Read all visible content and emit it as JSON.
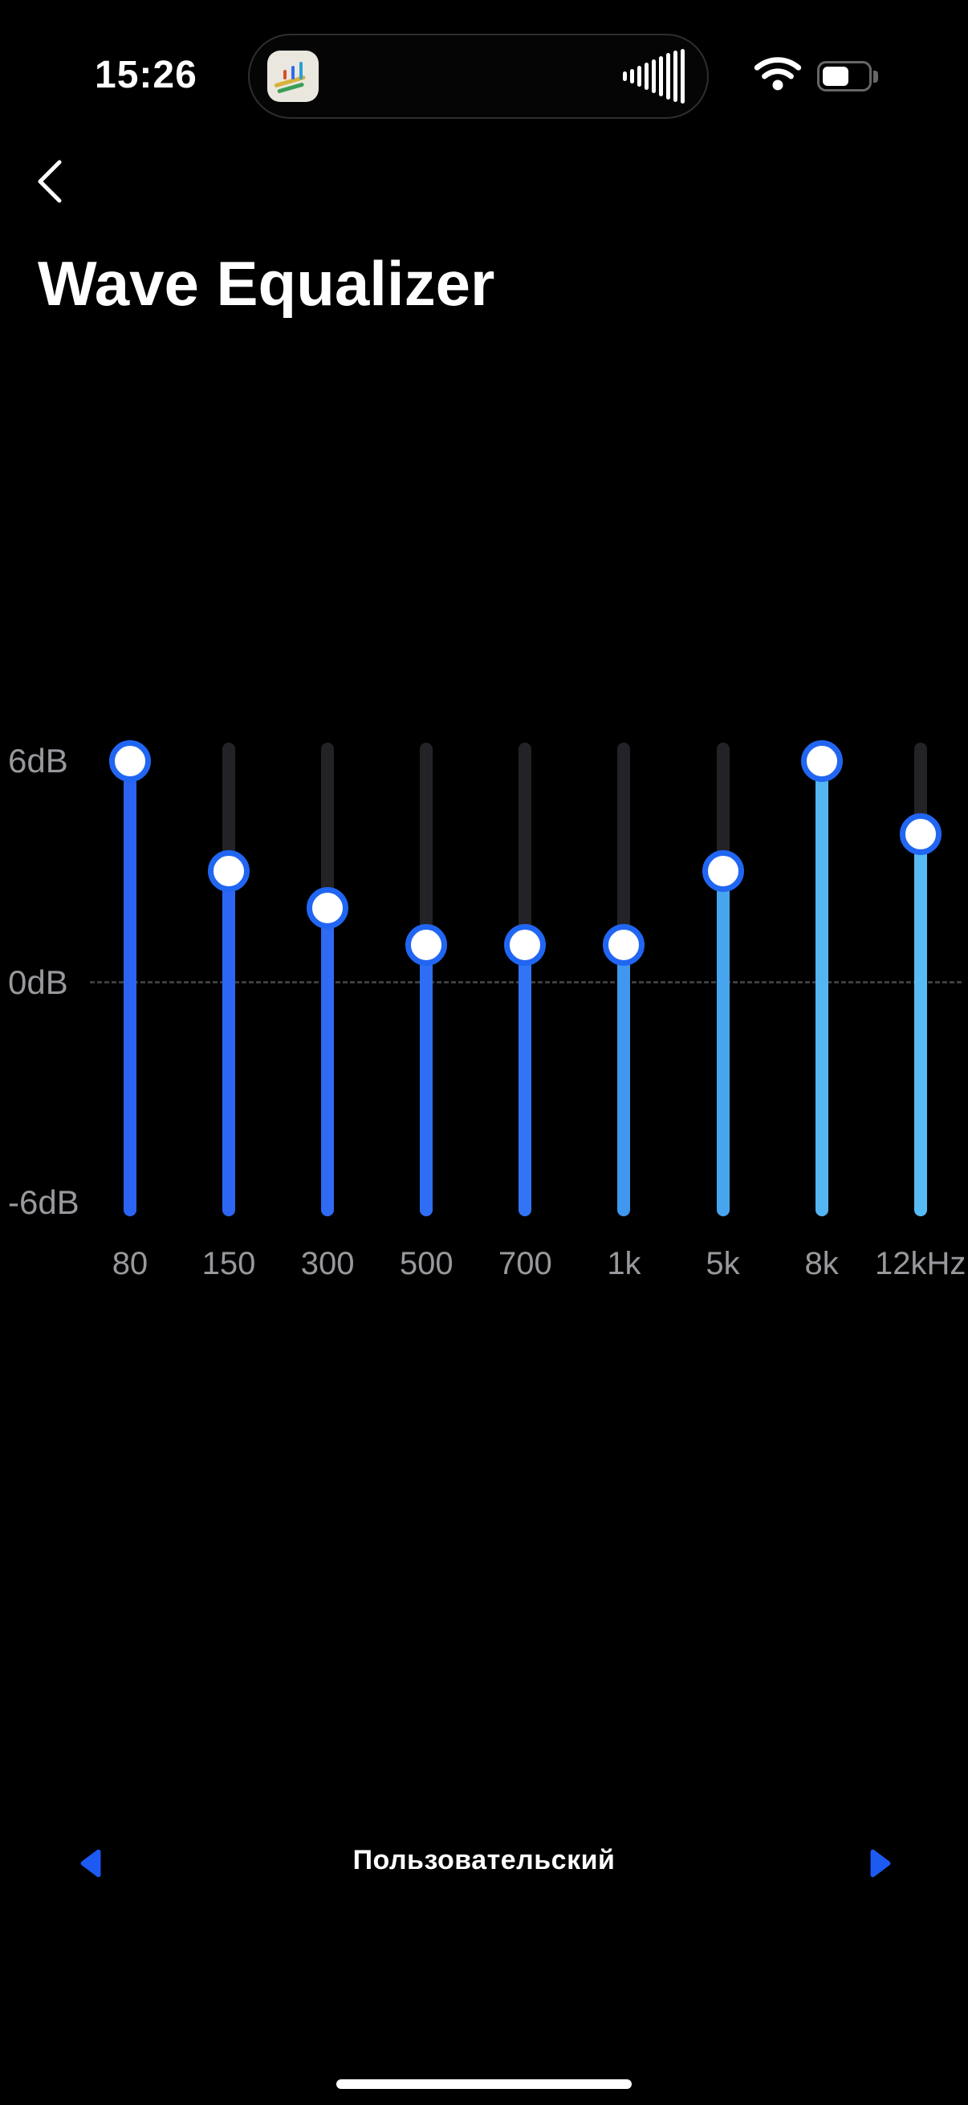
{
  "status_bar": {
    "time": "15:26",
    "dynamic_island": {
      "app_icon": "equalizer-app-icon",
      "activity": "audio-playing-bars"
    },
    "wifi_icon": "wifi",
    "battery_level_percent": 60
  },
  "header": {
    "back_icon": "chevron-left",
    "title": "Wave Equalizer"
  },
  "equalizer": {
    "y_axis_labels": {
      "top": "6dB",
      "zero": "0dB",
      "bottom": "-6dB"
    },
    "db_range": {
      "min": -6,
      "max": 6
    },
    "bands": [
      {
        "freq": "80",
        "gain_db": 6,
        "color": "#2b63f2"
      },
      {
        "freq": "150",
        "gain_db": 3,
        "color": "#2c66f3"
      },
      {
        "freq": "300",
        "gain_db": 2,
        "color": "#2e6af3"
      },
      {
        "freq": "500",
        "gain_db": 1,
        "color": "#2f6ef4"
      },
      {
        "freq": "700",
        "gain_db": 1,
        "color": "#3174f4"
      },
      {
        "freq": "1k",
        "gain_db": 1,
        "color": "#3f97ef"
      },
      {
        "freq": "5k",
        "gain_db": 3,
        "color": "#47a5f0"
      },
      {
        "freq": "8k",
        "gain_db": 6,
        "color": "#53b6f3"
      },
      {
        "freq": "12kHz",
        "gain_db": 4,
        "color": "#57bcf4"
      }
    ]
  },
  "preset": {
    "label": "Пользовательский",
    "prev_icon": "triangle-left",
    "next_icon": "triangle-right"
  },
  "colors": {
    "background": "#000000",
    "accent_blue": "#1c5af2",
    "knob_ring": "#2166f2",
    "track_gray": "#232327",
    "label_gray": "#98989d"
  }
}
